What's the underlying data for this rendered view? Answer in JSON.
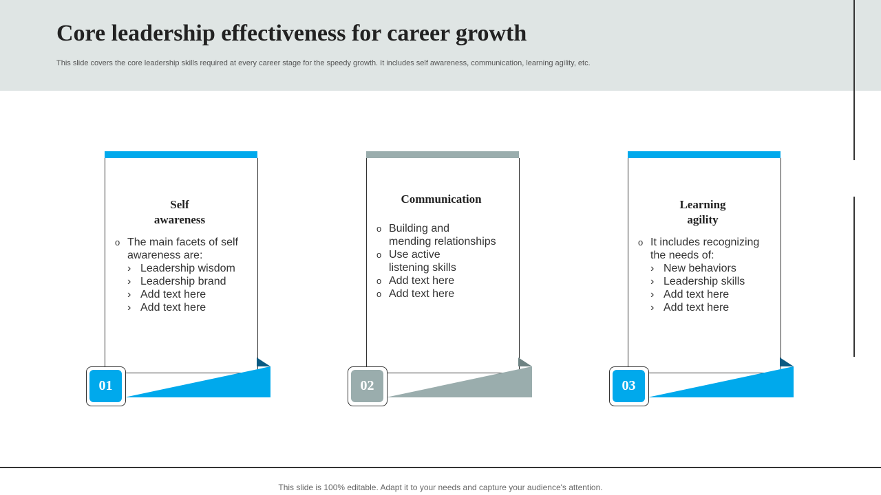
{
  "header": {
    "title": "Core leadership effectiveness for career growth",
    "subtitle": "This slide covers the core leadership skills  required  at every career stage for the speedy growth. It includes self awareness, communication, learning agility, etc."
  },
  "footer": "This slide is 100% editable. Adapt it to your needs and capture your audience's attention.",
  "colors": {
    "blue": "#00a9ec",
    "grey": "#9aadad",
    "dark_blue": "#0a5a82",
    "dark_grey": "#6e8383"
  },
  "cards": [
    {
      "number": "01",
      "title_line1": "Self",
      "title_line2": "awareness",
      "bullet1_line1": "The main facets of self",
      "bullet1_line2": "awareness are:",
      "subs": [
        "Leadership wisdom",
        "Leadership brand",
        "Add text here",
        "Add text here"
      ]
    },
    {
      "number": "02",
      "title_line1": "Communication",
      "bullets": [
        [
          "Building and",
          "mending relationships"
        ],
        [
          "Use active",
          "listening skills"
        ],
        [
          "Add text here"
        ],
        [
          "Add text here"
        ]
      ]
    },
    {
      "number": "03",
      "title_line1": "Learning",
      "title_line2": "agility",
      "bullet1_line1": "It includes recognizing",
      "bullet1_line2": "the needs of:",
      "subs": [
        "New behaviors",
        "Leadership skills",
        "Add text here",
        "Add text here"
      ]
    }
  ],
  "icons": {
    "circle_bullet": "o",
    "sub_bullet": "›"
  }
}
